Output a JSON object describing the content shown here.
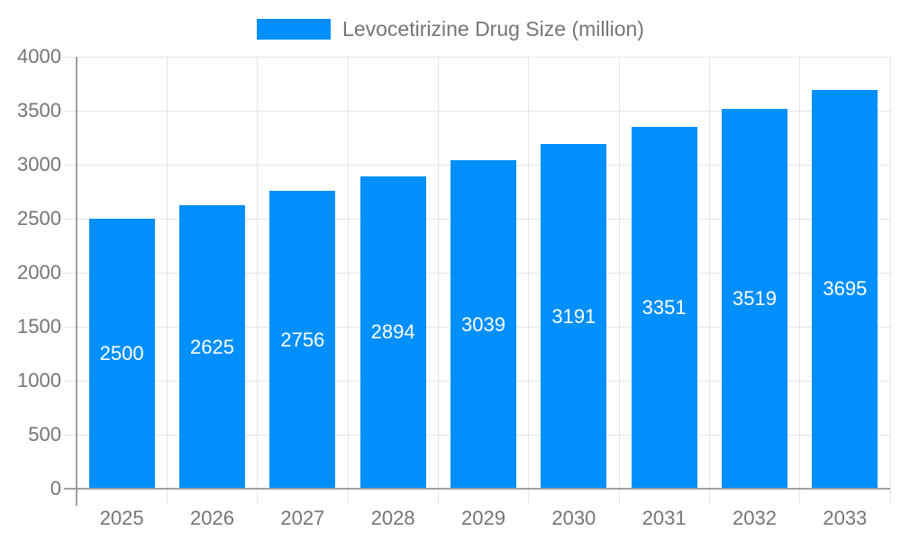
{
  "chart_data": {
    "type": "bar",
    "title": "Levocetirizine Drug Size (million)",
    "categories": [
      "2025",
      "2026",
      "2027",
      "2028",
      "2029",
      "2030",
      "2031",
      "2032",
      "2033"
    ],
    "series": [
      {
        "name": "Levocetirizine Drug Size (million)",
        "values": [
          2500,
          2625,
          2756,
          2894,
          3039,
          3191,
          3351,
          3519,
          3695
        ]
      }
    ],
    "xlabel": "",
    "ylabel": "",
    "ylim": [
      0,
      4000
    ],
    "yticks": [
      0,
      500,
      1000,
      1500,
      2000,
      2500,
      3000,
      3500,
      4000
    ],
    "grid": true,
    "legend_position": "top",
    "value_labels": "centered-inside-bars",
    "colors": {
      "bar": "#008FFB",
      "grid": "#e6e6e6",
      "axis": "#a0a0a0",
      "axis_label": "#757575",
      "value_label": "#ffffff",
      "background": "#ffffff"
    }
  }
}
